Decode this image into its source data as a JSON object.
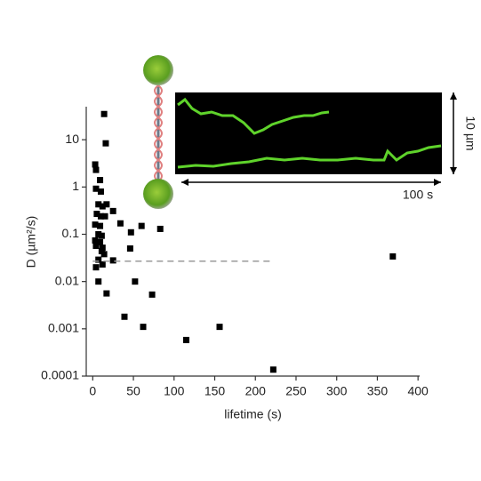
{
  "chart_data": {
    "type": "scatter",
    "x_label": "lifetime (s)",
    "y_label": "D (µm²/s)",
    "log_y": true,
    "color": "#000000",
    "xlim": [
      -8,
      402
    ],
    "ylim": [
      0.0001,
      50
    ],
    "xticks": [
      0,
      50,
      100,
      150,
      200,
      250,
      300,
      350,
      400
    ],
    "yticks": [
      0.0001,
      0.001,
      0.01,
      0.1,
      1,
      10
    ],
    "series": [
      {
        "name": "D",
        "x": [
          14,
          16,
          3,
          4,
          9,
          4,
          10,
          7,
          12,
          17,
          25,
          5,
          10,
          15,
          34,
          3,
          9,
          60,
          83,
          47,
          7,
          11,
          3,
          9,
          4,
          12,
          46,
          11,
          14,
          7,
          25,
          12,
          4,
          7,
          52,
          17,
          73,
          39,
          62,
          115,
          156,
          222,
          369
        ],
        "values": [
          35,
          8.4,
          3.0,
          2.3,
          1.4,
          0.92,
          0.8,
          0.43,
          0.39,
          0.43,
          0.31,
          0.27,
          0.24,
          0.24,
          0.17,
          0.16,
          0.15,
          0.15,
          0.13,
          0.11,
          0.1,
          0.093,
          0.074,
          0.068,
          0.057,
          0.052,
          0.05,
          0.044,
          0.038,
          0.029,
          0.028,
          0.023,
          0.02,
          0.01,
          0.01,
          0.0056,
          0.0053,
          0.0018,
          0.0011,
          0.00058,
          0.0011,
          0.000137,
          0.034
        ]
      }
    ],
    "threshold": {
      "value": 0.027,
      "x_end": 220,
      "color": "#999999"
    },
    "inset": {
      "scale_y": "10 µm",
      "scale_x": "100 s"
    }
  }
}
